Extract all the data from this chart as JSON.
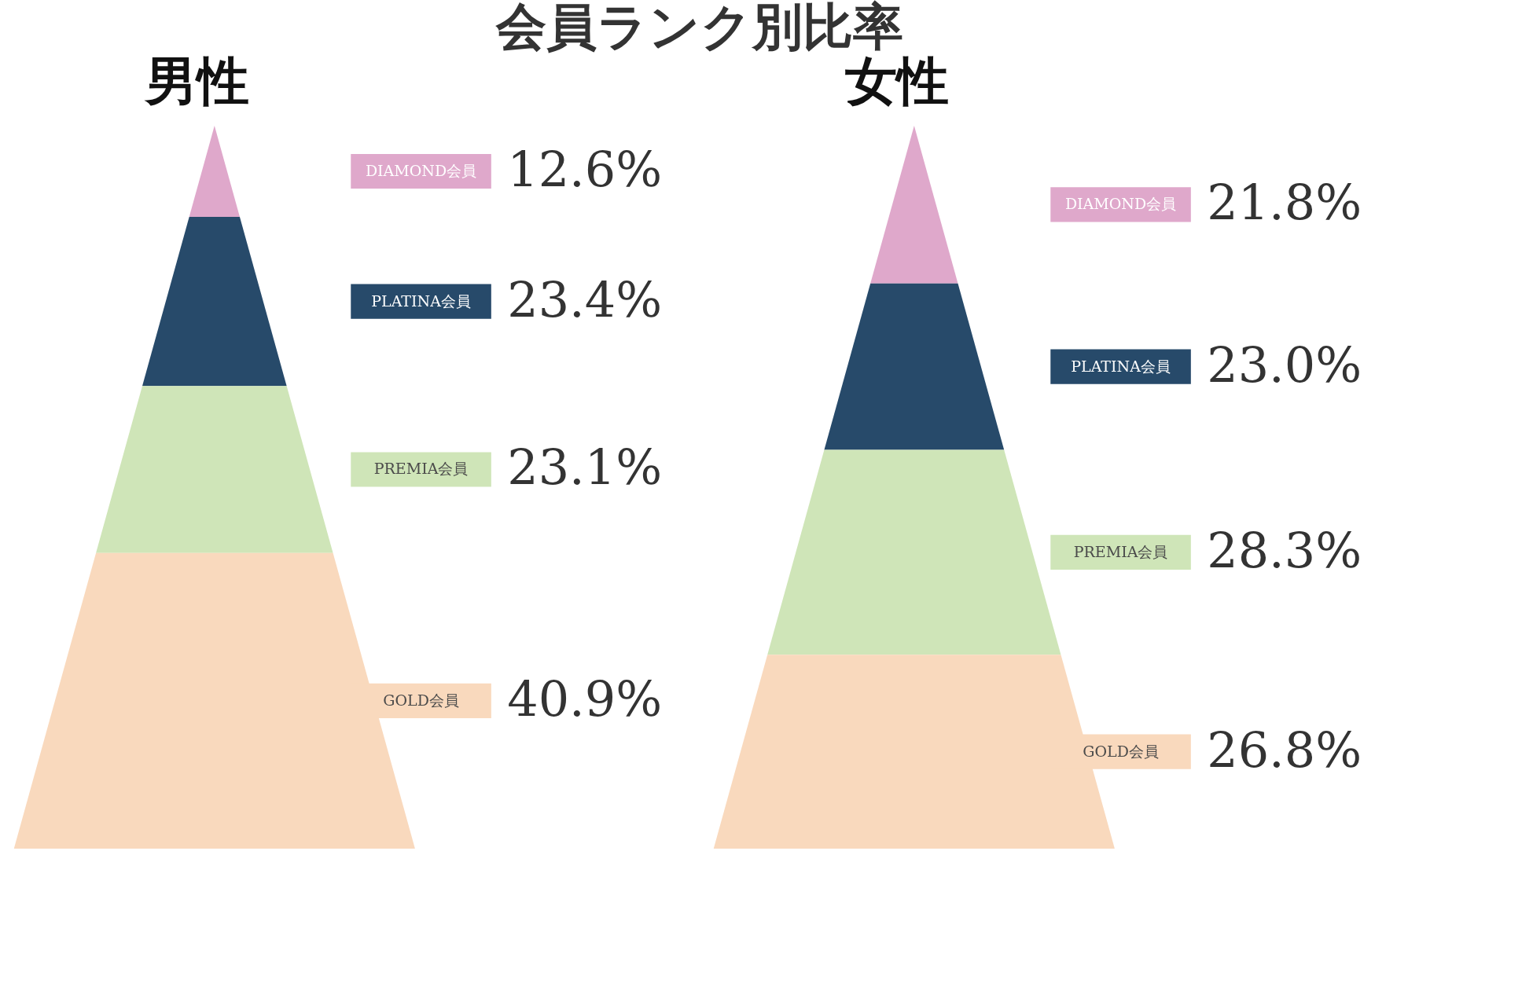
{
  "chart_data": [
    {
      "type": "other",
      "title": "会員ランク別比率"
    },
    {
      "type": "other",
      "title": "男性",
      "categories": [
        "DIAMOND会員",
        "PLATINA会員",
        "PREMIA会員",
        "GOLD会員"
      ],
      "values": [
        12.6,
        23.4,
        23.1,
        40.9
      ],
      "value_labels": [
        "12.6%",
        "23.4%",
        "23.1%",
        "40.9%"
      ],
      "colors": [
        "#dfa8cb",
        "#274a6a",
        "#cfe5b8",
        "#f9d9bd"
      ]
    },
    {
      "type": "other",
      "title": "女性",
      "categories": [
        "DIAMOND会員",
        "PLATINA会員",
        "PREMIA会員",
        "GOLD会員"
      ],
      "values": [
        21.8,
        23.0,
        28.3,
        26.8
      ],
      "value_labels": [
        "21.8%",
        "23.0%",
        "28.3%",
        "26.8%"
      ],
      "colors": [
        "#dfa8cb",
        "#274a6a",
        "#cfe5b8",
        "#f9d9bd"
      ]
    }
  ]
}
